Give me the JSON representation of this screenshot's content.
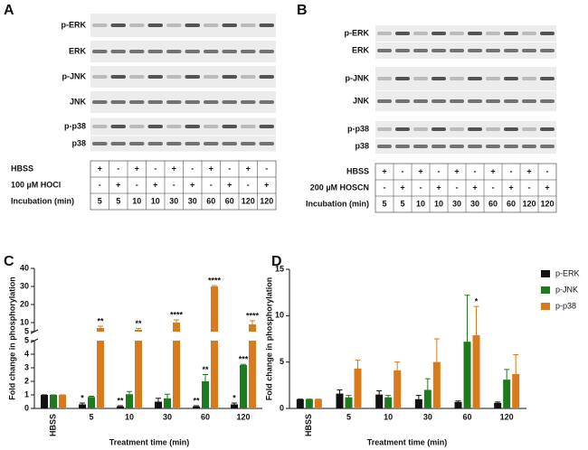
{
  "blots": [
    {
      "panel": "A",
      "bands": [
        "p-ERK",
        "ERK",
        "p-JNK",
        "JNK",
        "p-p38",
        "p38"
      ],
      "table": {
        "rows": [
          {
            "label": "HBSS",
            "cells": [
              "+",
              "-",
              "+",
              "-",
              "+",
              "-",
              "+",
              "-",
              "+",
              "-"
            ]
          },
          {
            "label": "100 µM HOCl",
            "cells": [
              "-",
              "+",
              "-",
              "+",
              "-",
              "+",
              "-",
              "+",
              "-",
              "+"
            ]
          },
          {
            "label": "Incubation (min)",
            "cells": [
              5,
              5,
              10,
              10,
              30,
              30,
              60,
              60,
              120,
              120
            ]
          }
        ]
      }
    },
    {
      "panel": "B",
      "bands": [
        "p-ERK",
        "ERK",
        "p-JNK",
        "JNK",
        "p-p38",
        "p38"
      ],
      "table": {
        "rows": [
          {
            "label": "HBSS",
            "cells": [
              "+",
              "-",
              "+",
              "-",
              "+",
              "-",
              "+",
              "-",
              "+",
              "-"
            ]
          },
          {
            "label": "200 µM HOSCN",
            "cells": [
              "-",
              "+",
              "-",
              "+",
              "-",
              "+",
              "-",
              "+",
              "-",
              "+"
            ]
          },
          {
            "label": "Incubation (min)",
            "cells": [
              5,
              5,
              10,
              10,
              30,
              30,
              60,
              60,
              120,
              120
            ]
          }
        ]
      }
    }
  ],
  "chart_data": [
    {
      "type": "bar",
      "panel": "C",
      "y_label": "Fold change in phosphorylation",
      "x_label": "Treatment time (min)",
      "categories": [
        "HBSS",
        "5",
        "10",
        "30",
        "60",
        "120"
      ],
      "axis_break": {
        "lower": {
          "ylim": [
            0,
            5
          ],
          "yticks": [
            0,
            1,
            2,
            3,
            4,
            5
          ]
        },
        "upper": {
          "ylim": [
            5,
            40
          ],
          "yticks": [
            5,
            10,
            20,
            30,
            40
          ]
        }
      },
      "legend": false,
      "series": [
        {
          "name": "p-ERK",
          "color": "#111111",
          "values": [
            1,
            0.3,
            0.15,
            0.5,
            0.15,
            0.3
          ],
          "errors": [
            0,
            0.1,
            0.05,
            0.25,
            0.05,
            0.1
          ],
          "annotations": [
            null,
            "*",
            "**",
            null,
            "**",
            "*"
          ]
        },
        {
          "name": "p-JNK",
          "color": "#1e7a1e",
          "values": [
            1,
            0.85,
            1.05,
            0.75,
            2.0,
            3.2
          ],
          "errors": [
            0,
            0.05,
            0.2,
            0.3,
            0.5,
            0.05
          ],
          "annotations": [
            null,
            null,
            null,
            null,
            "**",
            "***"
          ]
        },
        {
          "name": "p-p38",
          "color": "#d97a1c",
          "values": [
            1,
            7,
            6,
            10,
            30,
            9
          ],
          "errors": [
            0,
            1,
            0.8,
            1.5,
            0.5,
            2
          ],
          "annotations": [
            null,
            "**",
            "**",
            "****",
            "****",
            "****"
          ]
        }
      ]
    },
    {
      "type": "bar",
      "panel": "D",
      "y_label": "Fold change in phosphorylation",
      "x_label": "Treatment time (min)",
      "categories": [
        "HBSS",
        "5",
        "10",
        "30",
        "60",
        "120"
      ],
      "ylim": [
        0,
        15
      ],
      "yticks": [
        0,
        5,
        10,
        15
      ],
      "legend": true,
      "series": [
        {
          "name": "p-ERK",
          "color": "#111111",
          "values": [
            1,
            1.6,
            1.5,
            1.0,
            0.7,
            0.6
          ],
          "errors": [
            0,
            0.4,
            0.4,
            0.4,
            0.1,
            0.1
          ],
          "annotations": [
            null,
            null,
            null,
            null,
            null,
            null
          ]
        },
        {
          "name": "p-JNK",
          "color": "#1e7a1e",
          "values": [
            1,
            1.2,
            1.2,
            2.0,
            7.2,
            3.1
          ],
          "errors": [
            0,
            0.2,
            0.2,
            1.2,
            5.0,
            1.1
          ],
          "annotations": [
            null,
            null,
            null,
            null,
            null,
            null
          ]
        },
        {
          "name": "p-p38",
          "color": "#d97a1c",
          "values": [
            1,
            4.3,
            4.1,
            5.0,
            7.9,
            3.7
          ],
          "errors": [
            0,
            0.9,
            0.9,
            2.5,
            3.1,
            2.1
          ],
          "annotations": [
            null,
            null,
            null,
            null,
            "*",
            null
          ]
        }
      ]
    }
  ]
}
